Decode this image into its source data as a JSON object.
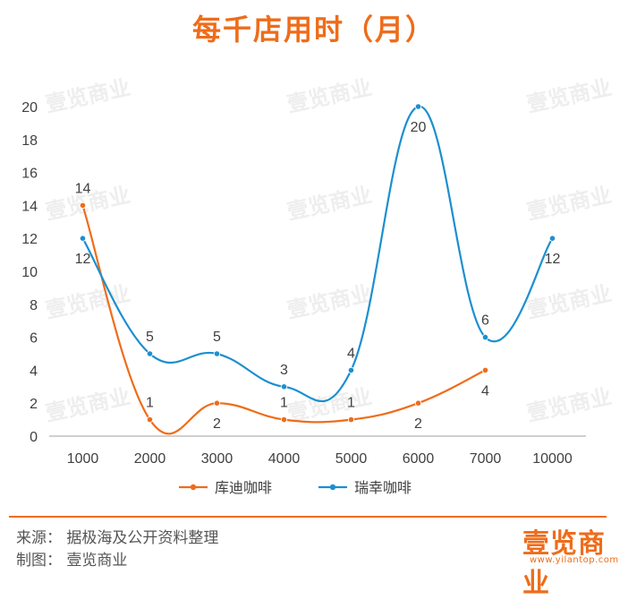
{
  "title": "每千店用时（月）",
  "watermark": "壹览商业",
  "footer": {
    "source": "来源：  据极海及公开资料整理",
    "maker": "制图：  壹览商业"
  },
  "logo": {
    "text": "壹览商业",
    "url": "www.yilantop.com"
  },
  "colors": {
    "accent": "#ef6c1a",
    "blue": "#1c8fd0",
    "axis": "#bfbfbf",
    "text": "#404040"
  },
  "chart_data": {
    "type": "line",
    "title": "每千店用时（月）",
    "categories": [
      "1000",
      "2000",
      "3000",
      "4000",
      "5000",
      "6000",
      "7000",
      "10000"
    ],
    "ylim": [
      0,
      20
    ],
    "yticks": [
      0,
      2,
      4,
      6,
      8,
      10,
      12,
      14,
      16,
      18,
      20
    ],
    "grid": false,
    "smooth": true,
    "legend_position": "bottom",
    "series": [
      {
        "name": "库迪咖啡",
        "color": "#ef6c1a",
        "values": [
          14,
          1,
          2,
          1,
          1,
          2,
          4,
          null
        ]
      },
      {
        "name": "瑞幸咖啡",
        "color": "#1c8fd0",
        "values": [
          12,
          5,
          5,
          3,
          4,
          20,
          6,
          12
        ]
      }
    ]
  }
}
